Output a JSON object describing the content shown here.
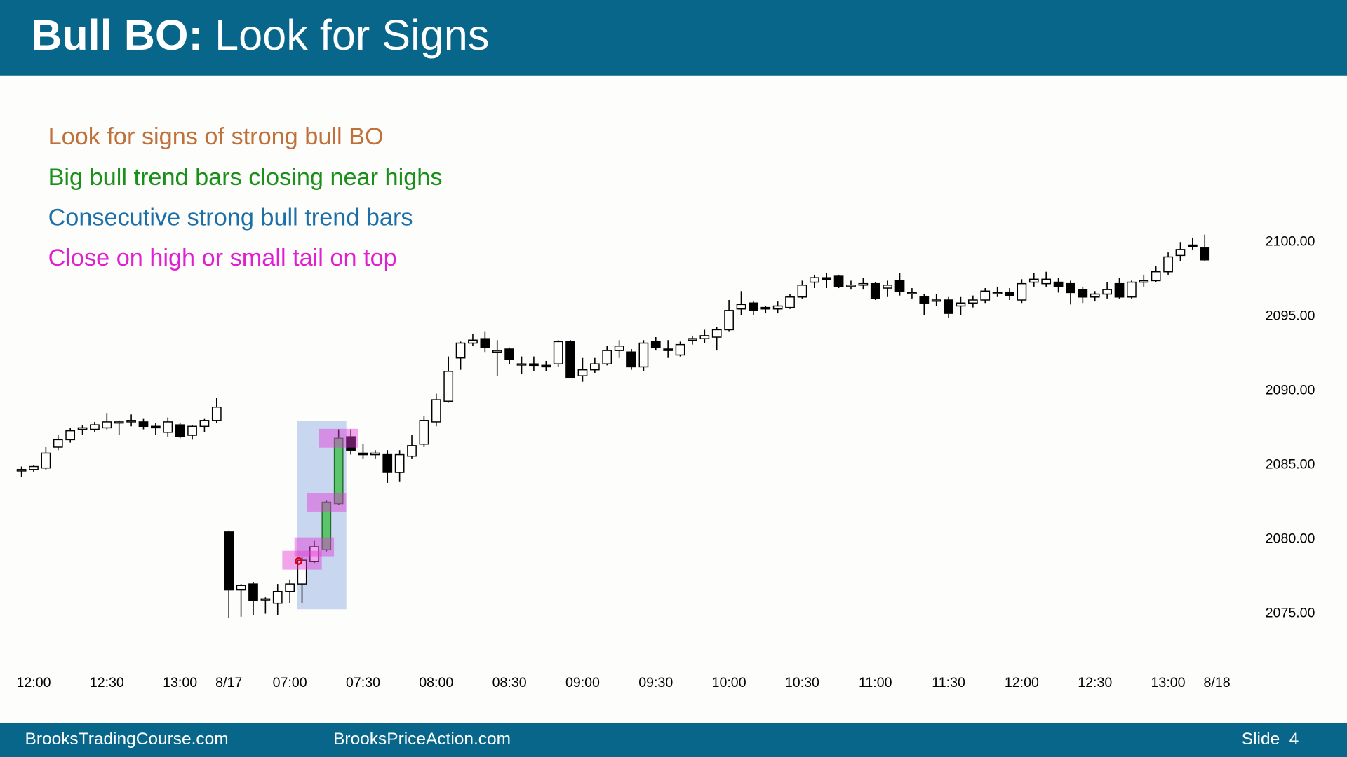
{
  "header": {
    "title": "Bull BO:",
    "subtitle": "Look for Signs"
  },
  "footer": {
    "left": "BrooksTradingCourse.com",
    "center": "BrooksPriceAction.com",
    "right": "Slide  4"
  },
  "chart_data": {
    "type": "candlestick",
    "annotations": [
      {
        "text": "Look for signs of strong bull BO",
        "color": "#c0703a"
      },
      {
        "text": "Big bull trend bars closing near highs",
        "color": "#1a8f1a"
      },
      {
        "text": "Consecutive strong bull trend bars",
        "color": "#1b6fa8"
      },
      {
        "text": "Close on high or small tail on top",
        "color": "#e020d0"
      }
    ],
    "categories": [
      null,
      "12:00",
      null,
      null,
      null,
      null,
      null,
      "12:30",
      null,
      null,
      null,
      null,
      null,
      "13:00",
      null,
      null,
      null,
      "8/17",
      null,
      null,
      null,
      null,
      "07:00",
      null,
      null,
      null,
      null,
      null,
      "07:30",
      null,
      null,
      null,
      null,
      null,
      "08:00",
      null,
      null,
      null,
      null,
      null,
      "08:30",
      null,
      null,
      null,
      null,
      null,
      "09:00",
      null,
      null,
      null,
      null,
      null,
      "09:30",
      null,
      null,
      null,
      null,
      null,
      "10:00",
      null,
      null,
      null,
      null,
      null,
      "10:30",
      null,
      null,
      null,
      null,
      null,
      "11:00",
      null,
      null,
      null,
      null,
      null,
      "11:30",
      null,
      null,
      null,
      null,
      null,
      "12:00",
      null,
      null,
      null,
      null,
      null,
      "12:30",
      null,
      null,
      null,
      null,
      null,
      "13:00",
      null,
      null,
      null,
      "8/18"
    ],
    "open": [
      2084.6,
      2084.7,
      2084.8,
      2086.2,
      2086.7,
      2087.4,
      2087.4,
      2087.5,
      2087.9,
      2087.9,
      2087.9,
      2087.6,
      2087.2,
      2087.7,
      2087.0,
      2087.6,
      2088.0,
      2080.5,
      2076.6,
      2077.0,
      2076.0,
      2075.7,
      2076.5,
      2077.0,
      2078.5,
      2079.3,
      2082.4,
      2086.9,
      2085.8,
      2085.7,
      2085.7,
      2084.5,
      2085.6,
      2086.4,
      2087.9,
      2089.3,
      2092.2,
      2093.2,
      2093.5,
      2092.6,
      2092.8,
      2091.8,
      2091.8,
      2091.7,
      2091.8,
      2093.3,
      2091.0,
      2091.4,
      2091.8,
      2092.7,
      2092.6,
      2091.6,
      2093.3,
      2092.8,
      2092.4,
      2093.4,
      2093.5,
      2093.6,
      2094.1,
      2095.5,
      2095.9,
      2095.5,
      2095.5,
      2095.6,
      2096.3,
      2097.3,
      2097.6,
      2097.7,
      2097.0,
      2097.1,
      2097.2,
      2096.9,
      2097.4,
      2096.6,
      2096.3,
      2096.1,
      2096.1,
      2095.7,
      2095.9,
      2096.1,
      2096.6,
      2096.6,
      2096.1,
      2097.3,
      2097.2,
      2097.3,
      2097.2,
      2096.8,
      2096.3,
      2096.5,
      2097.2,
      2096.3,
      2097.3,
      2097.4,
      2098.0,
      2099.1,
      2099.8,
      2099.6,
      null
    ],
    "high": [
      2084.9,
      2085.0,
      2086.2,
      2087.0,
      2087.5,
      2087.7,
      2087.9,
      2088.5,
      2088.0,
      2088.4,
      2088.1,
      2087.8,
      2088.2,
      2087.8,
      2087.7,
      2088.1,
      2089.5,
      2080.6,
      2077.0,
      2077.1,
      2076.1,
      2077.0,
      2077.3,
      2078.8,
      2079.9,
      2082.6,
      2087.4,
      2087.4,
      2086.4,
      2086.0,
      2086.0,
      2086.0,
      2087.0,
      2088.3,
      2089.8,
      2092.3,
      2093.3,
      2093.8,
      2094.0,
      2093.4,
      2092.9,
      2092.3,
      2092.3,
      2092.0,
      2093.4,
      2093.4,
      2092.2,
      2092.2,
      2093.0,
      2093.4,
      2092.8,
      2093.4,
      2093.6,
      2093.4,
      2093.3,
      2093.7,
      2094.1,
      2094.3,
      2096.1,
      2096.7,
      2096.0,
      2095.7,
      2096.0,
      2096.5,
      2097.4,
      2097.8,
      2097.9,
      2097.8,
      2097.4,
      2097.6,
      2097.3,
      2097.4,
      2097.9,
      2096.9,
      2096.5,
      2096.5,
      2096.3,
      2096.3,
      2096.4,
      2096.9,
      2097.0,
      2096.9,
      2097.5,
      2097.9,
      2098.0,
      2097.6,
      2097.4,
      2097.0,
      2096.7,
      2097.3,
      2097.6,
      2097.4,
      2097.8,
      2098.4,
      2099.3,
      2100.0,
      2100.3,
      2100.5,
      null
    ],
    "low": [
      2084.2,
      2084.5,
      2084.7,
      2086.0,
      2086.5,
      2087.0,
      2087.2,
      2087.4,
      2087.0,
      2087.6,
      2087.4,
      2087.0,
      2086.9,
      2086.8,
      2086.7,
      2087.2,
      2087.8,
      2074.7,
      2074.8,
      2074.9,
      2075.0,
      2074.9,
      2075.7,
      2075.7,
      2078.4,
      2079.2,
      2082.3,
      2085.7,
      2085.4,
      2085.4,
      2083.8,
      2083.9,
      2085.4,
      2086.2,
      2087.6,
      2089.2,
      2091.4,
      2093.0,
      2092.6,
      2091.0,
      2091.8,
      2091.1,
      2091.3,
      2091.3,
      2091.6,
      2090.9,
      2090.6,
      2091.2,
      2091.7,
      2092.2,
      2091.4,
      2091.3,
      2092.7,
      2092.2,
      2092.3,
      2093.1,
      2093.2,
      2092.7,
      2094.0,
      2095.1,
      2095.1,
      2095.2,
      2095.2,
      2095.5,
      2096.2,
      2096.9,
      2096.9,
      2096.9,
      2096.8,
      2096.8,
      2096.1,
      2096.3,
      2096.4,
      2096.2,
      2095.1,
      2095.7,
      2094.9,
      2095.1,
      2095.6,
      2095.9,
      2096.3,
      2096.1,
      2095.9,
      2097.0,
      2097.0,
      2096.6,
      2095.8,
      2095.9,
      2096.0,
      2096.2,
      2096.2,
      2096.2,
      2097.0,
      2097.3,
      2097.8,
      2098.7,
      2099.5,
      2098.7,
      null
    ],
    "close": [
      2084.7,
      2084.9,
      2085.8,
      2086.7,
      2087.3,
      2087.5,
      2087.7,
      2087.9,
      2087.9,
      2088.0,
      2087.6,
      2087.5,
      2087.9,
      2086.9,
      2087.6,
      2088.0,
      2088.9,
      2076.6,
      2076.9,
      2075.9,
      2076.0,
      2076.5,
      2077.0,
      2078.6,
      2079.5,
      2082.5,
      2086.8,
      2086.0,
      2085.7,
      2085.8,
      2084.5,
      2085.7,
      2086.3,
      2088.0,
      2089.4,
      2091.3,
      2093.2,
      2093.4,
      2092.9,
      2092.7,
      2092.1,
      2091.8,
      2091.7,
      2091.6,
      2093.3,
      2090.9,
      2091.4,
      2091.8,
      2092.7,
      2093.0,
      2091.6,
      2093.2,
      2092.9,
      2092.7,
      2093.1,
      2093.5,
      2093.7,
      2094.1,
      2095.4,
      2095.8,
      2095.4,
      2095.6,
      2095.7,
      2096.3,
      2097.1,
      2097.6,
      2097.5,
      2097.0,
      2097.1,
      2097.2,
      2096.2,
      2097.1,
      2096.7,
      2096.6,
      2095.9,
      2096.1,
      2095.2,
      2095.9,
      2096.1,
      2096.7,
      2096.6,
      2096.4,
      2097.2,
      2097.5,
      2097.5,
      2097.0,
      2096.6,
      2096.3,
      2096.5,
      2096.8,
      2096.3,
      2097.3,
      2097.4,
      2098.0,
      2099.0,
      2099.5,
      2099.7,
      2098.8,
      null
    ],
    "ylim": [
      2071,
      2104
    ],
    "yticks": [
      {
        "value": 2075,
        "label": "2075.00"
      },
      {
        "value": 2080,
        "label": "2080.00"
      },
      {
        "value": 2085,
        "label": "2085.00"
      },
      {
        "value": 2090,
        "label": "2090.00"
      },
      {
        "value": 2095,
        "label": "2095.00"
      },
      {
        "value": 2100,
        "label": "2100.00"
      }
    ],
    "grid": false
  }
}
